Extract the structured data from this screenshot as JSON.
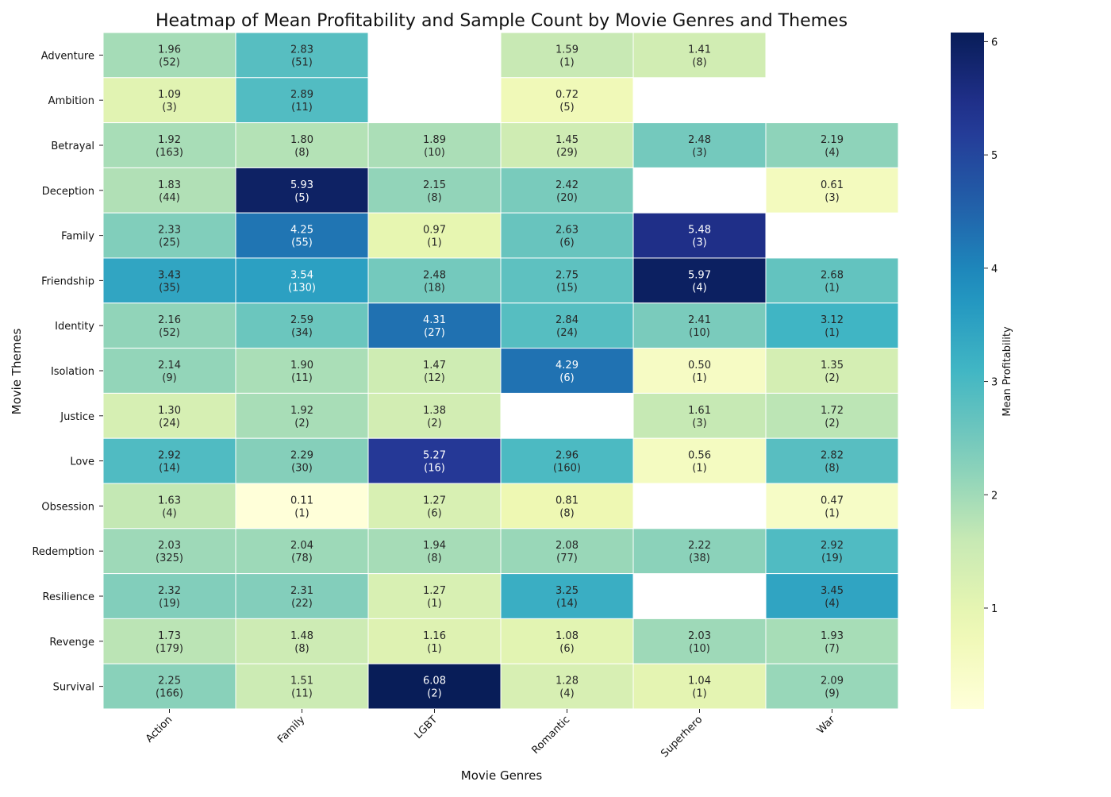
{
  "chart_data": {
    "type": "heatmap",
    "title": "Heatmap of Mean Profitability and Sample Count by Movie Genres and Themes",
    "xlabel": "Movie Genres",
    "ylabel": "Movie Themes",
    "x_categories": [
      "Action",
      "Family",
      "LGBT",
      "Romantic",
      "Superhero",
      "War"
    ],
    "y_categories": [
      "Adventure",
      "Ambition",
      "Betrayal",
      "Deception",
      "Family",
      "Friendship",
      "Identity",
      "Isolation",
      "Justice",
      "Love",
      "Obsession",
      "Redemption",
      "Resilience",
      "Revenge",
      "Survival"
    ],
    "values": [
      [
        1.96,
        2.83,
        null,
        1.59,
        1.41,
        null
      ],
      [
        1.09,
        2.89,
        null,
        0.72,
        null,
        null
      ],
      [
        1.92,
        1.8,
        1.89,
        1.45,
        2.48,
        2.19
      ],
      [
        1.83,
        5.93,
        2.15,
        2.42,
        null,
        0.61
      ],
      [
        2.33,
        4.25,
        0.97,
        2.63,
        5.48,
        null
      ],
      [
        3.43,
        3.54,
        2.48,
        2.75,
        5.97,
        2.68
      ],
      [
        2.16,
        2.59,
        4.31,
        2.84,
        2.41,
        3.12
      ],
      [
        2.14,
        1.9,
        1.47,
        4.29,
        0.5,
        1.35
      ],
      [
        1.3,
        1.92,
        1.38,
        null,
        1.61,
        1.72
      ],
      [
        2.92,
        2.29,
        5.27,
        2.96,
        0.56,
        2.82
      ],
      [
        1.63,
        0.11,
        1.27,
        0.81,
        null,
        0.47
      ],
      [
        2.03,
        2.04,
        1.94,
        2.08,
        2.22,
        2.92
      ],
      [
        2.32,
        2.31,
        1.27,
        3.25,
        null,
        3.45
      ],
      [
        1.73,
        1.48,
        1.16,
        1.08,
        2.03,
        1.93
      ],
      [
        2.25,
        1.51,
        6.08,
        1.28,
        1.04,
        2.09
      ]
    ],
    "counts": [
      [
        52,
        51,
        null,
        1,
        8,
        null
      ],
      [
        3,
        11,
        null,
        5,
        null,
        null
      ],
      [
        163,
        8,
        10,
        29,
        3,
        4
      ],
      [
        44,
        5,
        8,
        20,
        null,
        3
      ],
      [
        25,
        55,
        1,
        6,
        3,
        null
      ],
      [
        35,
        130,
        18,
        15,
        4,
        1
      ],
      [
        52,
        34,
        27,
        24,
        10,
        1
      ],
      [
        9,
        11,
        12,
        6,
        1,
        2
      ],
      [
        24,
        2,
        2,
        null,
        3,
        2
      ],
      [
        14,
        30,
        16,
        160,
        1,
        8
      ],
      [
        4,
        1,
        6,
        8,
        null,
        1
      ],
      [
        325,
        78,
        8,
        77,
        38,
        19
      ],
      [
        19,
        22,
        1,
        14,
        null,
        4
      ],
      [
        179,
        8,
        1,
        6,
        10,
        7
      ],
      [
        166,
        11,
        2,
        4,
        1,
        9
      ]
    ],
    "colorbar": {
      "label": "Mean Profitability",
      "range": [
        0.11,
        6.08
      ],
      "ticks": [
        1,
        2,
        3,
        4,
        5,
        6
      ],
      "colormap": "YlGnBu"
    }
  }
}
